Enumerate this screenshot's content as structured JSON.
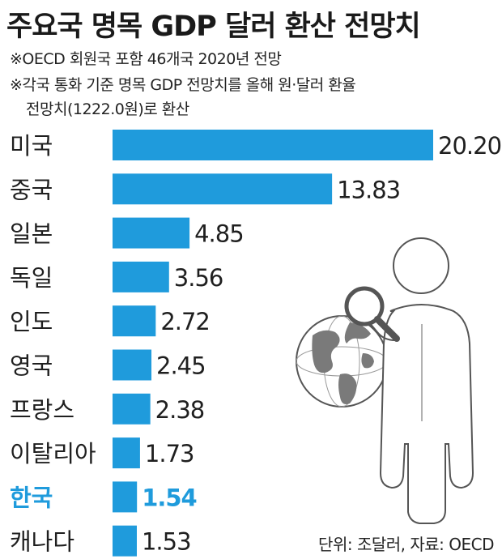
{
  "header": {
    "title": "주요국 명목 GDP 달러 환산 전망치",
    "note1": "※OECD 회원국 포함 46개국 2020년 전망",
    "note2": "※각국 통화 기준 명목 GDP 전망치를 올해 원·달러 환율",
    "note3": "전망치(1222.0원)로 환산"
  },
  "source": "단위: 조달러, 자료: OECD",
  "colors": {
    "bar": "#1f9bdc",
    "highlight_text": "#1f9bdc",
    "text": "#1f1f1f"
  },
  "illustration": "person-with-magnifying-glass-and-globe-icon",
  "chart_data": {
    "type": "bar",
    "orientation": "horizontal",
    "title": "주요국 명목 GDP 달러 환산 전망치",
    "unit": "조달러",
    "categories": [
      "미국",
      "중국",
      "일본",
      "독일",
      "인도",
      "영국",
      "프랑스",
      "이탈리아",
      "한국",
      "캐나다"
    ],
    "values": [
      20.2,
      13.83,
      4.85,
      3.56,
      2.72,
      2.45,
      2.38,
      1.73,
      1.54,
      1.53
    ],
    "value_labels": [
      "20.20",
      "13.83",
      "4.85",
      "3.56",
      "2.72",
      "2.45",
      "2.38",
      "1.73",
      "1.54",
      "1.53"
    ],
    "highlight": "한국",
    "grid": false,
    "legend": false
  }
}
